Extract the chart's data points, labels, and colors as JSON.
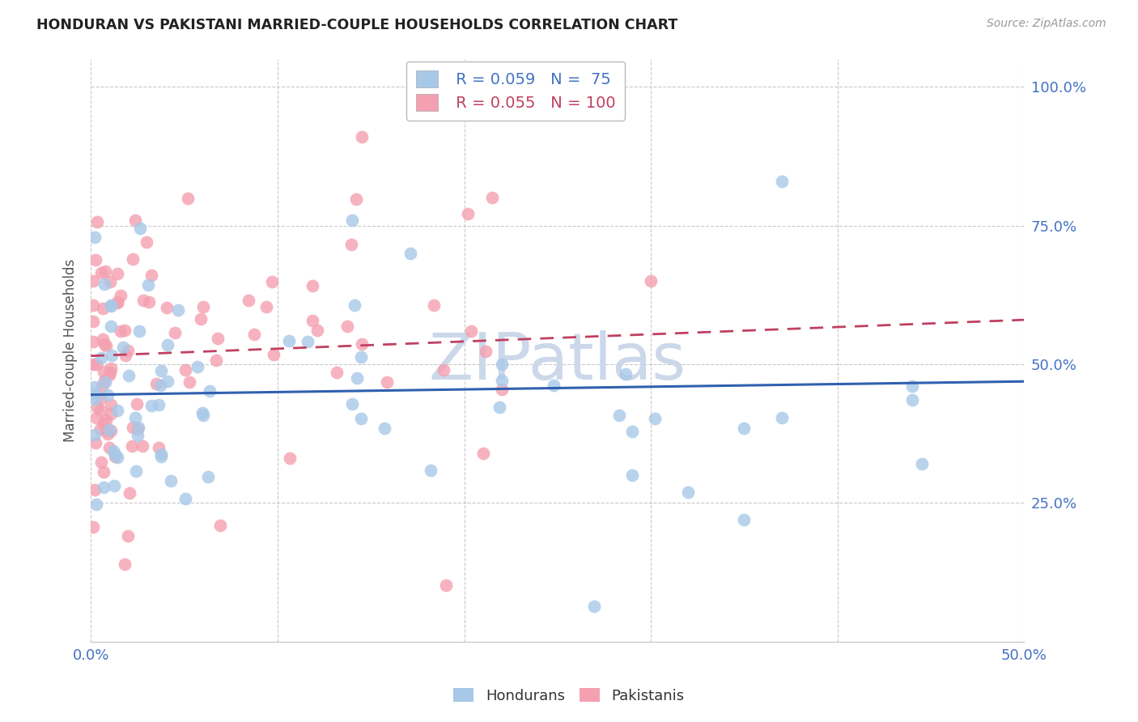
{
  "title": "HONDURAN VS PAKISTANI MARRIED-COUPLE HOUSEHOLDS CORRELATION CHART",
  "source": "Source: ZipAtlas.com",
  "ylabel": "Married-couple Households",
  "legend_blue_label": "Hondurans",
  "legend_pink_label": "Pakistanis",
  "R_blue": 0.059,
  "N_blue": 75,
  "R_pink": 0.055,
  "N_pink": 100,
  "blue_color": "#a8c8e8",
  "pink_color": "#f4a0b0",
  "blue_line_color": "#3060b0",
  "pink_line_color": "#c04060",
  "pink_line_dash": [
    6,
    4
  ],
  "watermark_text": "ZIPatlas",
  "watermark_color": "#ccd8ea",
  "background_color": "#ffffff",
  "grid_color": "#bbbbbb",
  "title_color": "#222222",
  "tick_color": "#4472c4",
  "ylabel_color": "#555555",
  "source_color": "#999999",
  "blue_line_intercept": 0.445,
  "blue_line_slope": 0.048,
  "pink_line_intercept": 0.515,
  "pink_line_slope": 0.13,
  "xlim": [
    0.0,
    0.5
  ],
  "ylim": [
    0.0,
    1.05
  ]
}
